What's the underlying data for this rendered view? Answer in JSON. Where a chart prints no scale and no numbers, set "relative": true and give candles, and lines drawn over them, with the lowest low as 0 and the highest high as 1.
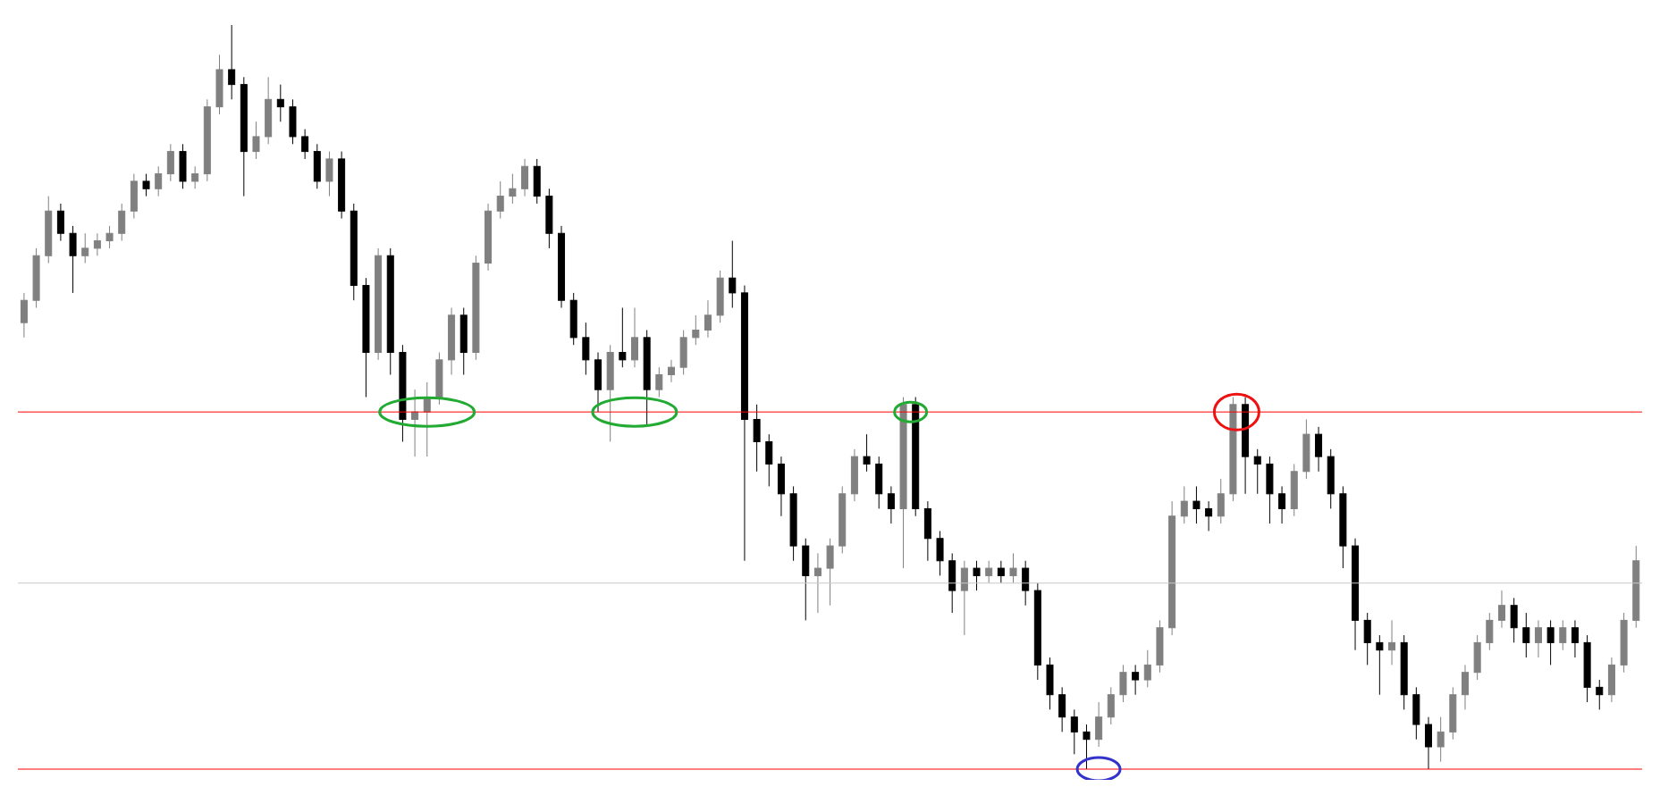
{
  "chart_data": {
    "type": "candlestick",
    "relative": true,
    "colors": [
      "#808080",
      "#808080",
      "#808080",
      "#000000",
      "#000000",
      "#808080",
      "#808080",
      "#808080",
      "#808080",
      "#808080",
      "#000000",
      "#808080",
      "#808080",
      "#000000",
      "#808080",
      "#808080",
      "#808080",
      "#000000",
      "#000000",
      "#808080",
      "#808080",
      "#000000",
      "#000000",
      "#000000",
      "#000000",
      "#808080",
      "#000000",
      "#000000",
      "#000000",
      "#808080",
      "#000000",
      "#000000",
      "#808080",
      "#808080",
      "#808080",
      "#808080",
      "#000000",
      "#808080",
      "#808080",
      "#808080",
      "#808080",
      "#808080",
      "#000000",
      "#000000",
      "#000000",
      "#000000",
      "#000000",
      "#000000",
      "#808080",
      "#000000",
      "#808080",
      "#000000",
      "#808080",
      "#808080",
      "#808080",
      "#808080",
      "#808080",
      "#808080",
      "#000000",
      "#000000",
      "#000000",
      "#000000",
      "#000000",
      "#000000",
      "#000000",
      "#808080",
      "#808080",
      "#808080",
      "#808080",
      "#000000",
      "#000000",
      "#000000",
      "#808080",
      "#000000",
      "#000000",
      "#000000",
      "#000000",
      "#808080",
      "#000000",
      "#808080",
      "#000000",
      "#808080",
      "#000000",
      "#000000",
      "#000000",
      "#000000",
      "#000000",
      "#000000",
      "#808080",
      "#808080",
      "#808080",
      "#000000",
      "#808080",
      "#808080",
      "#808080",
      "#808080",
      "#000000",
      "#000000",
      "#808080",
      "#808080",
      "#000000",
      "#000000",
      "#000000",
      "#000000",
      "#808080",
      "#808080",
      "#000000",
      "#000000",
      "#000000",
      "#000000",
      "#000000",
      "#000000",
      "#808080",
      "#000000",
      "#000000",
      "#000000",
      "#808080",
      "#808080",
      "#808080",
      "#808080",
      "#808080",
      "#808080",
      "#000000",
      "#000000",
      "#808080",
      "#000000",
      "#808080",
      "#000000",
      "#000000",
      "#000000",
      "#808080",
      "#808080",
      "#808080"
    ],
    "categories": [
      null,
      null,
      null,
      null,
      null,
      null,
      null,
      null,
      null,
      null,
      null,
      null,
      null,
      null,
      null,
      null,
      null,
      null,
      null,
      null,
      null,
      null,
      null,
      null,
      null,
      null,
      null,
      null,
      null,
      null,
      null,
      null,
      null,
      null,
      null,
      null,
      null,
      null,
      null,
      null,
      null,
      null,
      null,
      null,
      null,
      null,
      null,
      null,
      null,
      null,
      null,
      null,
      null,
      null,
      null,
      null,
      null,
      null,
      null,
      null,
      null,
      null,
      null,
      null,
      null,
      null,
      null,
      null,
      null,
      null,
      null,
      null,
      null,
      null,
      null,
      null,
      null,
      null,
      null,
      null,
      null,
      null,
      null,
      null,
      null,
      null,
      null,
      null,
      null,
      null,
      null,
      null,
      null,
      null,
      null,
      null,
      null,
      null,
      null,
      null,
      null,
      null,
      null,
      null,
      null,
      null,
      null,
      null,
      null,
      null,
      null,
      null,
      null,
      null,
      null,
      null,
      null,
      null,
      null,
      null,
      null,
      null,
      null,
      null,
      null,
      null,
      null,
      null,
      null,
      null,
      null,
      null,
      null
    ],
    "ohlc": [
      [
        0.6,
        0.64,
        0.58,
        0.63
      ],
      [
        0.63,
        0.7,
        0.62,
        0.69
      ],
      [
        0.69,
        0.77,
        0.68,
        0.75
      ],
      [
        0.75,
        0.76,
        0.71,
        0.72
      ],
      [
        0.72,
        0.73,
        0.64,
        0.69
      ],
      [
        0.69,
        0.72,
        0.68,
        0.7
      ],
      [
        0.7,
        0.72,
        0.69,
        0.71
      ],
      [
        0.71,
        0.73,
        0.7,
        0.72
      ],
      [
        0.72,
        0.76,
        0.71,
        0.75
      ],
      [
        0.75,
        0.8,
        0.74,
        0.79
      ],
      [
        0.79,
        0.8,
        0.77,
        0.78
      ],
      [
        0.78,
        0.81,
        0.77,
        0.8
      ],
      [
        0.8,
        0.84,
        0.79,
        0.83
      ],
      [
        0.83,
        0.84,
        0.78,
        0.79
      ],
      [
        0.79,
        0.81,
        0.78,
        0.8
      ],
      [
        0.8,
        0.9,
        0.79,
        0.89
      ],
      [
        0.89,
        0.96,
        0.88,
        0.94
      ],
      [
        0.94,
        1.0,
        0.9,
        0.92
      ],
      [
        0.92,
        0.93,
        0.77,
        0.83
      ],
      [
        0.83,
        0.87,
        0.82,
        0.85
      ],
      [
        0.85,
        0.93,
        0.84,
        0.9
      ],
      [
        0.9,
        0.92,
        0.87,
        0.89
      ],
      [
        0.89,
        0.9,
        0.84,
        0.85
      ],
      [
        0.85,
        0.86,
        0.82,
        0.83
      ],
      [
        0.83,
        0.84,
        0.78,
        0.79
      ],
      [
        0.79,
        0.83,
        0.77,
        0.82
      ],
      [
        0.82,
        0.83,
        0.74,
        0.75
      ],
      [
        0.75,
        0.76,
        0.63,
        0.65
      ],
      [
        0.65,
        0.66,
        0.5,
        0.56
      ],
      [
        0.56,
        0.7,
        0.55,
        0.69
      ],
      [
        0.69,
        0.7,
        0.53,
        0.56
      ],
      [
        0.56,
        0.57,
        0.44,
        0.47
      ],
      [
        0.47,
        0.51,
        0.42,
        0.48
      ],
      [
        0.48,
        0.52,
        0.42,
        0.5
      ],
      [
        0.5,
        0.56,
        0.49,
        0.55
      ],
      [
        0.55,
        0.62,
        0.53,
        0.61
      ],
      [
        0.61,
        0.62,
        0.53,
        0.56
      ],
      [
        0.56,
        0.69,
        0.55,
        0.68
      ],
      [
        0.68,
        0.76,
        0.67,
        0.75
      ],
      [
        0.75,
        0.79,
        0.74,
        0.77
      ],
      [
        0.77,
        0.8,
        0.76,
        0.78
      ],
      [
        0.78,
        0.82,
        0.77,
        0.81
      ],
      [
        0.81,
        0.82,
        0.76,
        0.77
      ],
      [
        0.77,
        0.78,
        0.7,
        0.72
      ],
      [
        0.72,
        0.73,
        0.62,
        0.63
      ],
      [
        0.63,
        0.64,
        0.57,
        0.58
      ],
      [
        0.58,
        0.6,
        0.53,
        0.55
      ],
      [
        0.55,
        0.56,
        0.48,
        0.51
      ],
      [
        0.51,
        0.57,
        0.44,
        0.56
      ],
      [
        0.56,
        0.62,
        0.54,
        0.55
      ],
      [
        0.55,
        0.62,
        0.54,
        0.58
      ],
      [
        0.58,
        0.59,
        0.46,
        0.51
      ],
      [
        0.51,
        0.54,
        0.5,
        0.53
      ],
      [
        0.53,
        0.55,
        0.52,
        0.54
      ],
      [
        0.54,
        0.59,
        0.53,
        0.58
      ],
      [
        0.58,
        0.61,
        0.57,
        0.59
      ],
      [
        0.59,
        0.63,
        0.58,
        0.61
      ],
      [
        0.61,
        0.67,
        0.6,
        0.66
      ],
      [
        0.66,
        0.71,
        0.62,
        0.64
      ],
      [
        0.64,
        0.65,
        0.28,
        0.47
      ],
      [
        0.47,
        0.49,
        0.4,
        0.44
      ],
      [
        0.44,
        0.45,
        0.38,
        0.41
      ],
      [
        0.41,
        0.42,
        0.34,
        0.37
      ],
      [
        0.37,
        0.38,
        0.28,
        0.3
      ],
      [
        0.3,
        0.31,
        0.2,
        0.26
      ],
      [
        0.26,
        0.29,
        0.21,
        0.27
      ],
      [
        0.27,
        0.31,
        0.22,
        0.3
      ],
      [
        0.3,
        0.38,
        0.29,
        0.37
      ],
      [
        0.37,
        0.43,
        0.36,
        0.42
      ],
      [
        0.42,
        0.45,
        0.4,
        0.41
      ],
      [
        0.41,
        0.42,
        0.35,
        0.37
      ],
      [
        0.37,
        0.38,
        0.33,
        0.35
      ],
      [
        0.35,
        0.5,
        0.27,
        0.49
      ],
      [
        0.49,
        0.5,
        0.34,
        0.35
      ],
      [
        0.35,
        0.36,
        0.28,
        0.31
      ],
      [
        0.31,
        0.32,
        0.26,
        0.28
      ],
      [
        0.28,
        0.29,
        0.21,
        0.24
      ],
      [
        0.24,
        0.28,
        0.18,
        0.27
      ],
      [
        0.27,
        0.28,
        0.24,
        0.26
      ],
      [
        0.26,
        0.28,
        0.25,
        0.27
      ],
      [
        0.27,
        0.28,
        0.25,
        0.26
      ],
      [
        0.26,
        0.29,
        0.25,
        0.27
      ],
      [
        0.27,
        0.28,
        0.22,
        0.24
      ],
      [
        0.24,
        0.25,
        0.12,
        0.14
      ],
      [
        0.14,
        0.15,
        0.08,
        0.1
      ],
      [
        0.1,
        0.11,
        0.05,
        0.07
      ],
      [
        0.07,
        0.08,
        0.02,
        0.05
      ],
      [
        0.05,
        0.06,
        0.0,
        0.04
      ],
      [
        0.04,
        0.09,
        0.03,
        0.07
      ],
      [
        0.07,
        0.11,
        0.06,
        0.1
      ],
      [
        0.1,
        0.14,
        0.09,
        0.13
      ],
      [
        0.13,
        0.14,
        0.1,
        0.12
      ],
      [
        0.12,
        0.16,
        0.11,
        0.14
      ],
      [
        0.14,
        0.2,
        0.13,
        0.19
      ],
      [
        0.19,
        0.36,
        0.18,
        0.34
      ],
      [
        0.34,
        0.38,
        0.33,
        0.36
      ],
      [
        0.36,
        0.38,
        0.33,
        0.35
      ],
      [
        0.35,
        0.36,
        0.32,
        0.34
      ],
      [
        0.34,
        0.39,
        0.33,
        0.37
      ],
      [
        0.37,
        0.5,
        0.36,
        0.49
      ],
      [
        0.49,
        0.5,
        0.37,
        0.42
      ],
      [
        0.42,
        0.43,
        0.37,
        0.41
      ],
      [
        0.41,
        0.42,
        0.33,
        0.37
      ],
      [
        0.37,
        0.38,
        0.33,
        0.35
      ],
      [
        0.35,
        0.41,
        0.34,
        0.4
      ],
      [
        0.4,
        0.47,
        0.39,
        0.45
      ],
      [
        0.45,
        0.46,
        0.4,
        0.42
      ],
      [
        0.42,
        0.43,
        0.35,
        0.37
      ],
      [
        0.37,
        0.38,
        0.27,
        0.3
      ],
      [
        0.3,
        0.31,
        0.16,
        0.2
      ],
      [
        0.2,
        0.21,
        0.14,
        0.17
      ],
      [
        0.17,
        0.18,
        0.1,
        0.16
      ],
      [
        0.16,
        0.2,
        0.14,
        0.17
      ],
      [
        0.17,
        0.18,
        0.08,
        0.1
      ],
      [
        0.1,
        0.11,
        0.04,
        0.06
      ],
      [
        0.06,
        0.07,
        0.0,
        0.03
      ],
      [
        0.03,
        0.07,
        0.01,
        0.05
      ],
      [
        0.05,
        0.11,
        0.04,
        0.1
      ],
      [
        0.1,
        0.14,
        0.08,
        0.13
      ],
      [
        0.13,
        0.18,
        0.12,
        0.17
      ],
      [
        0.17,
        0.21,
        0.16,
        0.2
      ],
      [
        0.2,
        0.24,
        0.19,
        0.22
      ],
      [
        0.22,
        0.23,
        0.17,
        0.19
      ],
      [
        0.19,
        0.21,
        0.15,
        0.17
      ],
      [
        0.17,
        0.2,
        0.15,
        0.19
      ],
      [
        0.19,
        0.2,
        0.14,
        0.17
      ],
      [
        0.17,
        0.2,
        0.16,
        0.19
      ],
      [
        0.19,
        0.2,
        0.15,
        0.17
      ],
      [
        0.17,
        0.18,
        0.09,
        0.11
      ],
      [
        0.11,
        0.12,
        0.08,
        0.1
      ],
      [
        0.1,
        0.15,
        0.09,
        0.14
      ],
      [
        0.14,
        0.21,
        0.13,
        0.2
      ],
      [
        0.2,
        0.3,
        0.19,
        0.28
      ]
    ],
    "ref_lines": [
      {
        "axis": "y",
        "value": 0.48,
        "color": "#ff0000"
      },
      {
        "axis": "y",
        "value": 0,
        "color": "#ff0000"
      },
      {
        "axis": "y",
        "value": 0.25,
        "color": "#c8c8c8"
      }
    ]
  }
}
